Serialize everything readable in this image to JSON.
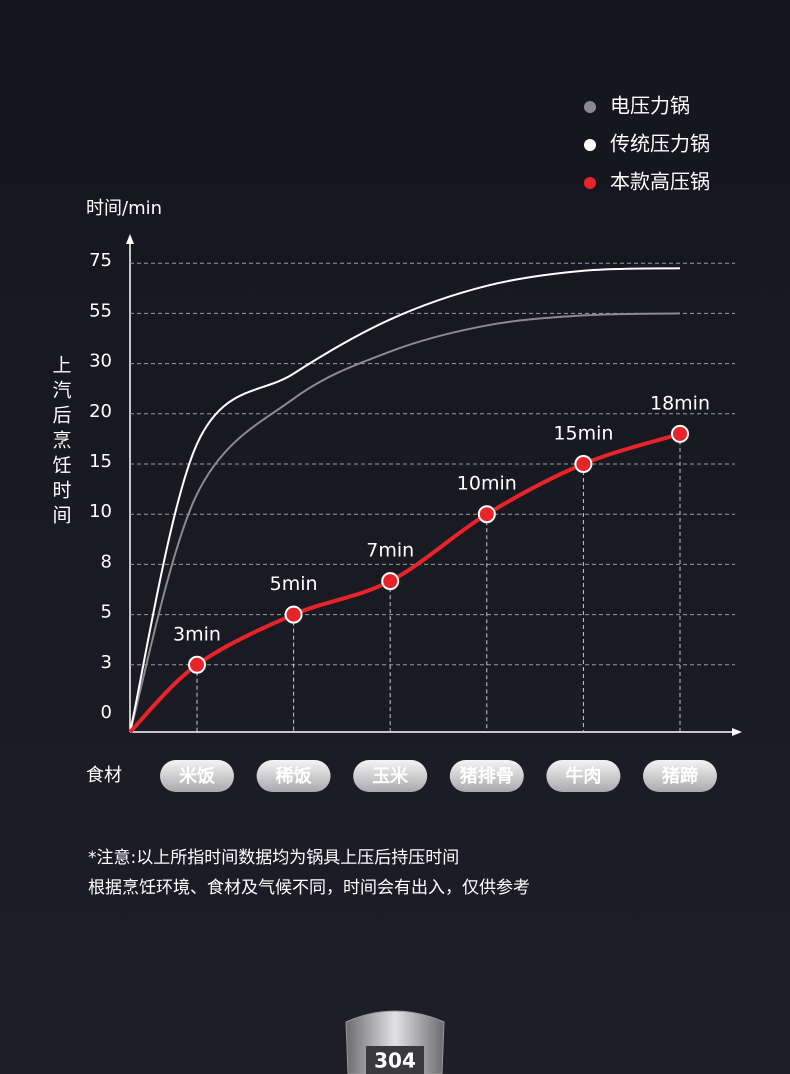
{
  "chart_data": {
    "type": "line",
    "y_unit_label": "时间/min",
    "y_axis_label": "上汽后烹饪时间",
    "x_axis_label": "食材",
    "categories": [
      "米饭",
      "稀饭",
      "玉米",
      "猪排骨",
      "牛肉",
      "猪蹄"
    ],
    "yticks": [
      0,
      3,
      5,
      8,
      10,
      15,
      20,
      30,
      55,
      75
    ],
    "ylim": [
      0,
      75
    ],
    "grid": true,
    "series": [
      {
        "name": "电压力锅",
        "color": "#8a8a90",
        "values": [
          12,
          23,
          36,
          49,
          54,
          55
        ]
      },
      {
        "name": "传统压力锅",
        "color": "#ffffff",
        "values": [
          17,
          28,
          52,
          66,
          72,
          73
        ]
      },
      {
        "name": "本款高压锅",
        "color": "#e8242a",
        "values": [
          3,
          5,
          7,
          10,
          15,
          18
        ],
        "value_labels": [
          "3min",
          "5min",
          "7min",
          "10min",
          "15min",
          "18min"
        ]
      }
    ],
    "footnote": [
      "*注意:以上所指时间数据均为锅具上压后持压时间",
      "根据烹饪环境、食材及气候不同，时间会有出入，仅供参考"
    ],
    "badge": "304"
  }
}
